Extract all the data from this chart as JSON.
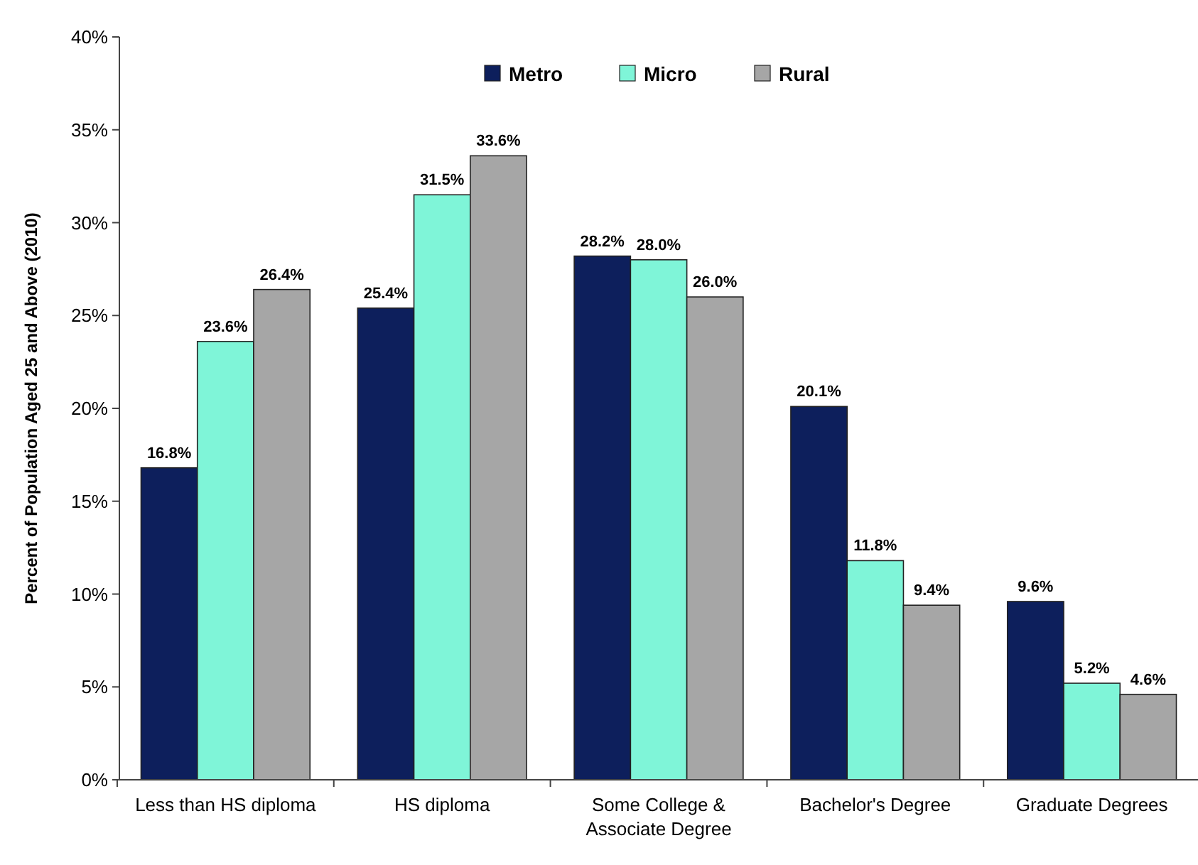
{
  "chart_data": {
    "type": "bar",
    "ylabel": "Percent of Population Aged 25 and Above (2010)",
    "categories": [
      "Less than HS diploma",
      "HS diploma",
      "Some College & Associate Degree",
      "Bachelor's Degree",
      "Graduate Degrees"
    ],
    "series": [
      {
        "name": "Metro",
        "color": "#0d1f5c",
        "values": [
          16.8,
          25.4,
          28.2,
          20.1,
          9.6
        ],
        "value_labels": [
          "16.8%",
          "25.4%",
          "28.2%",
          "20.1%",
          "9.6%"
        ]
      },
      {
        "name": "Micro",
        "color": "#7ff5d8",
        "values": [
          23.6,
          31.5,
          28.0,
          11.8,
          5.2
        ],
        "value_labels": [
          "23.6%",
          "31.5%",
          "28.0%",
          "11.8%",
          "5.2%"
        ]
      },
      {
        "name": "Rural",
        "color": "#a6a6a6",
        "values": [
          26.4,
          33.6,
          26.0,
          9.4,
          4.6
        ],
        "value_labels": [
          "26.4%",
          "33.6%",
          "26.0%",
          "9.4%",
          "4.6%"
        ]
      }
    ],
    "ylim": [
      0,
      40
    ],
    "yticks": [
      {
        "value": 0,
        "label": "0%"
      },
      {
        "value": 5,
        "label": "5%"
      },
      {
        "value": 10,
        "label": "10%"
      },
      {
        "value": 15,
        "label": "15%"
      },
      {
        "value": 20,
        "label": "20%"
      },
      {
        "value": 25,
        "label": "25%"
      },
      {
        "value": 30,
        "label": "30%"
      },
      {
        "value": 35,
        "label": "35%"
      },
      {
        "value": 40,
        "label": "40%"
      }
    ],
    "legend": "top"
  }
}
